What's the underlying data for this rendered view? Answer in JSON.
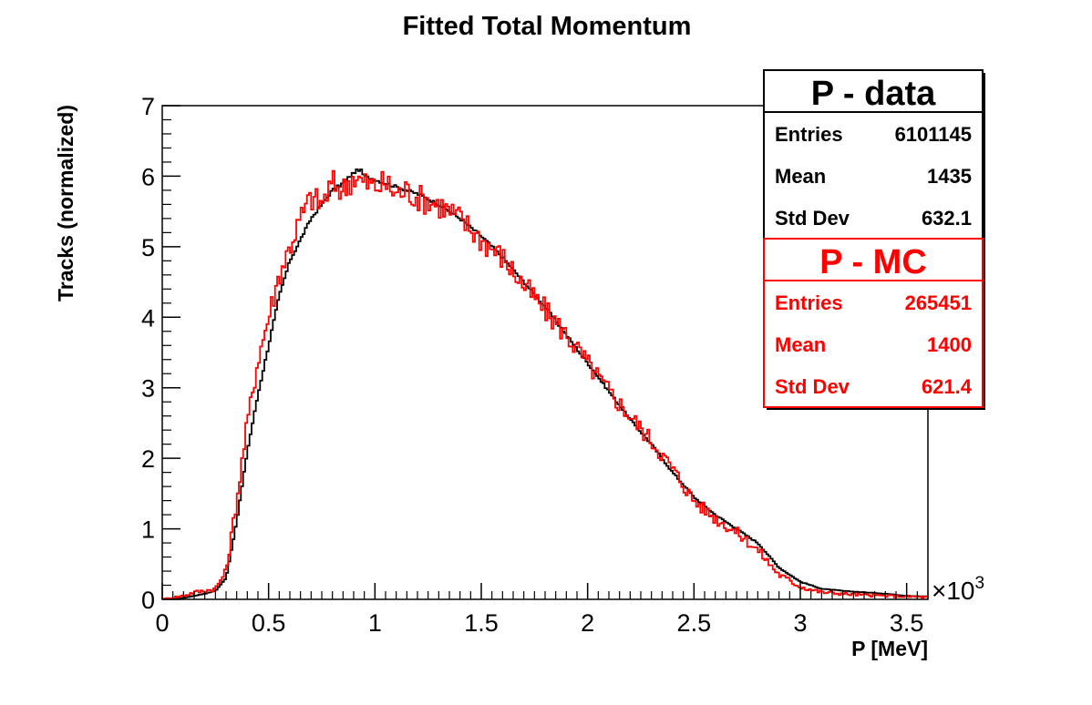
{
  "chart_data": {
    "type": "line",
    "title": "Fitted Total Momentum",
    "xlabel": "P [MeV]",
    "ylabel": "Tracks (normalized)",
    "x_multiplier": "×10",
    "x_multiplier_exp": "3",
    "xlim": [
      0,
      3.6
    ],
    "ylim": [
      0,
      7
    ],
    "x_ticks": [
      0,
      0.5,
      1,
      1.5,
      2,
      2.5,
      3,
      3.5
    ],
    "x_tick_labels": [
      "0",
      "0.5",
      "1",
      "1.5",
      "2",
      "2.5",
      "3",
      "3.5"
    ],
    "y_ticks": [
      0,
      1,
      2,
      3,
      4,
      5,
      6,
      7
    ],
    "y_tick_labels": [
      "0",
      "1",
      "2",
      "3",
      "4",
      "5",
      "6",
      "7"
    ],
    "grid": false,
    "series": [
      {
        "name": "P - data",
        "color": "#000000",
        "x": [
          0,
          0.1,
          0.15,
          0.2,
          0.25,
          0.3,
          0.35,
          0.4,
          0.45,
          0.5,
          0.55,
          0.6,
          0.65,
          0.7,
          0.75,
          0.8,
          0.85,
          0.9,
          0.93,
          0.95,
          1,
          1.1,
          1.2,
          1.3,
          1.4,
          1.5,
          1.6,
          1.7,
          1.8,
          1.9,
          2,
          2.1,
          2.2,
          2.3,
          2.4,
          2.5,
          2.6,
          2.7,
          2.8,
          2.9,
          3,
          3.1,
          3.2,
          3.3,
          3.4,
          3.5,
          3.6
        ],
        "y": [
          0,
          0.02,
          0.05,
          0.08,
          0.12,
          0.3,
          1.1,
          2.1,
          2.9,
          3.6,
          4.3,
          4.8,
          5.1,
          5.4,
          5.6,
          5.8,
          5.9,
          6.05,
          6.1,
          6.0,
          5.95,
          5.85,
          5.75,
          5.6,
          5.4,
          5.15,
          4.85,
          4.5,
          4.15,
          3.75,
          3.35,
          2.95,
          2.55,
          2.2,
          1.8,
          1.45,
          1.2,
          1.0,
          0.8,
          0.45,
          0.25,
          0.15,
          0.12,
          0.1,
          0.08,
          0.05,
          0.04
        ]
      },
      {
        "name": "P - MC",
        "color": "#ff0000",
        "x": [
          0,
          0.1,
          0.15,
          0.2,
          0.25,
          0.3,
          0.35,
          0.4,
          0.45,
          0.5,
          0.55,
          0.6,
          0.65,
          0.7,
          0.75,
          0.8,
          0.85,
          0.9,
          0.95,
          1,
          1.05,
          1.1,
          1.15,
          1.2,
          1.3,
          1.4,
          1.5,
          1.6,
          1.7,
          1.8,
          1.9,
          2,
          2.1,
          2.2,
          2.3,
          2.4,
          2.5,
          2.6,
          2.7,
          2.8,
          2.9,
          3,
          3.1,
          3.2,
          3.3,
          3.4,
          3.5,
          3.6
        ],
        "y": [
          0,
          0.05,
          0.1,
          0.12,
          0.15,
          0.4,
          1.4,
          2.5,
          3.4,
          4.0,
          4.6,
          5.0,
          5.4,
          5.7,
          5.6,
          5.9,
          5.8,
          6.0,
          5.9,
          5.85,
          5.9,
          5.75,
          5.8,
          5.7,
          5.6,
          5.4,
          5.1,
          4.85,
          4.45,
          4.1,
          3.75,
          3.35,
          2.95,
          2.6,
          2.25,
          1.85,
          1.4,
          1.15,
          0.95,
          0.7,
          0.35,
          0.18,
          0.1,
          0.08,
          0.06,
          0.05,
          0.04,
          0.03
        ]
      }
    ],
    "stats_boxes": [
      {
        "title": "P - data",
        "color": "#000000",
        "rows": [
          {
            "label": "Entries",
            "value": "6101145"
          },
          {
            "label": "Mean",
            "value": "1435"
          },
          {
            "label": "Std Dev",
            "value": "632.1"
          }
        ]
      },
      {
        "title": "P - MC",
        "color": "#ff0000",
        "rows": [
          {
            "label": "Entries",
            "value": "265451"
          },
          {
            "label": "Mean",
            "value": "1400"
          },
          {
            "label": "Std Dev",
            "value": "621.4"
          }
        ]
      }
    ]
  }
}
